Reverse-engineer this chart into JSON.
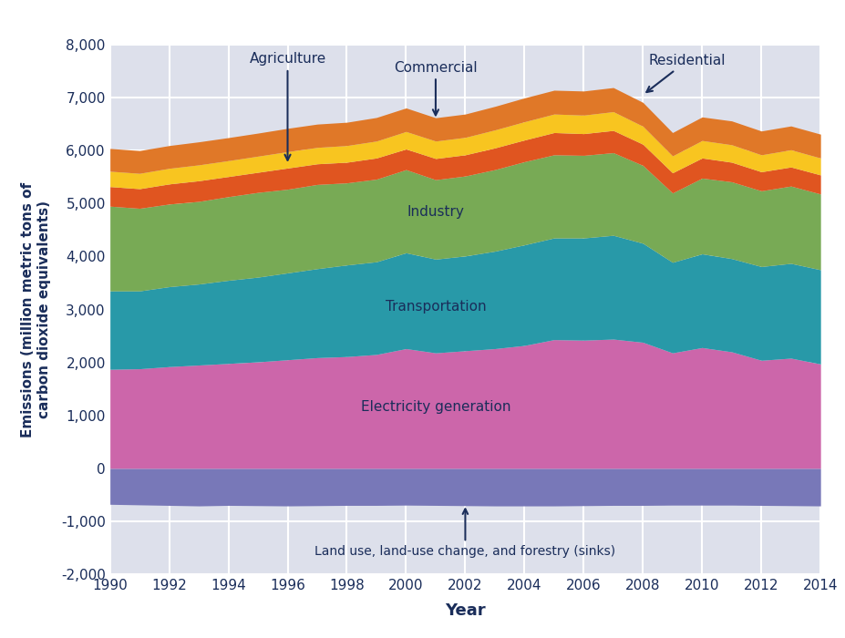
{
  "years": [
    1990,
    1991,
    1992,
    1993,
    1994,
    1995,
    1996,
    1997,
    1998,
    1999,
    2000,
    2001,
    2002,
    2003,
    2004,
    2005,
    2006,
    2007,
    2008,
    2009,
    2010,
    2011,
    2012,
    2013,
    2014
  ],
  "land_use": [
    -680,
    -690,
    -700,
    -710,
    -700,
    -705,
    -710,
    -705,
    -700,
    -700,
    -695,
    -700,
    -705,
    -710,
    -710,
    -710,
    -705,
    -700,
    -700,
    -695,
    -695,
    -695,
    -700,
    -705,
    -710
  ],
  "electricity": [
    1870,
    1880,
    1920,
    1950,
    1980,
    2010,
    2050,
    2090,
    2110,
    2150,
    2260,
    2180,
    2220,
    2260,
    2320,
    2430,
    2420,
    2440,
    2380,
    2180,
    2280,
    2200,
    2040,
    2080,
    1970
  ],
  "transportation": [
    1480,
    1470,
    1510,
    1530,
    1570,
    1600,
    1640,
    1680,
    1730,
    1750,
    1810,
    1770,
    1790,
    1840,
    1900,
    1920,
    1930,
    1960,
    1870,
    1710,
    1770,
    1760,
    1770,
    1790,
    1780
  ],
  "industry": [
    1600,
    1560,
    1560,
    1560,
    1580,
    1600,
    1580,
    1590,
    1550,
    1560,
    1570,
    1500,
    1510,
    1540,
    1570,
    1570,
    1560,
    1560,
    1470,
    1310,
    1430,
    1450,
    1430,
    1460,
    1430
  ],
  "residential": [
    370,
    370,
    380,
    390,
    380,
    380,
    400,
    390,
    390,
    400,
    390,
    400,
    400,
    410,
    410,
    420,
    410,
    420,
    400,
    380,
    380,
    370,
    360,
    360,
    360
  ],
  "commercial": [
    290,
    290,
    295,
    300,
    300,
    305,
    310,
    310,
    315,
    320,
    330,
    330,
    330,
    340,
    345,
    350,
    350,
    355,
    340,
    320,
    330,
    330,
    320,
    325,
    320
  ],
  "agriculture": [
    430,
    430,
    430,
    435,
    435,
    435,
    440,
    440,
    440,
    445,
    445,
    440,
    440,
    445,
    450,
    450,
    455,
    455,
    450,
    440,
    445,
    450,
    450,
    450,
    450
  ],
  "colors": {
    "land_use": "#7878b8",
    "electricity": "#cc66aa",
    "transportation": "#2899a8",
    "industry": "#78aa55",
    "residential": "#e05520",
    "commercial": "#f8c520",
    "agriculture": "#e07828"
  },
  "label_color": "#1a2d5a",
  "xlabel": "Year",
  "ylabel": "Emissions (million metric tons of\ncarbon dioxide equivalents)",
  "ylim": [
    -2000,
    8000
  ],
  "xlim": [
    1990,
    2014
  ],
  "yticks": [
    -2000,
    -1000,
    0,
    1000,
    2000,
    3000,
    4000,
    5000,
    6000,
    7000,
    8000
  ],
  "xticks": [
    1990,
    1992,
    1994,
    1996,
    1998,
    2000,
    2002,
    2004,
    2006,
    2008,
    2010,
    2012,
    2014
  ],
  "plot_bg_color": "#dde0eb",
  "fig_bg_color": "#ffffff",
  "grid_color": "#ffffff"
}
